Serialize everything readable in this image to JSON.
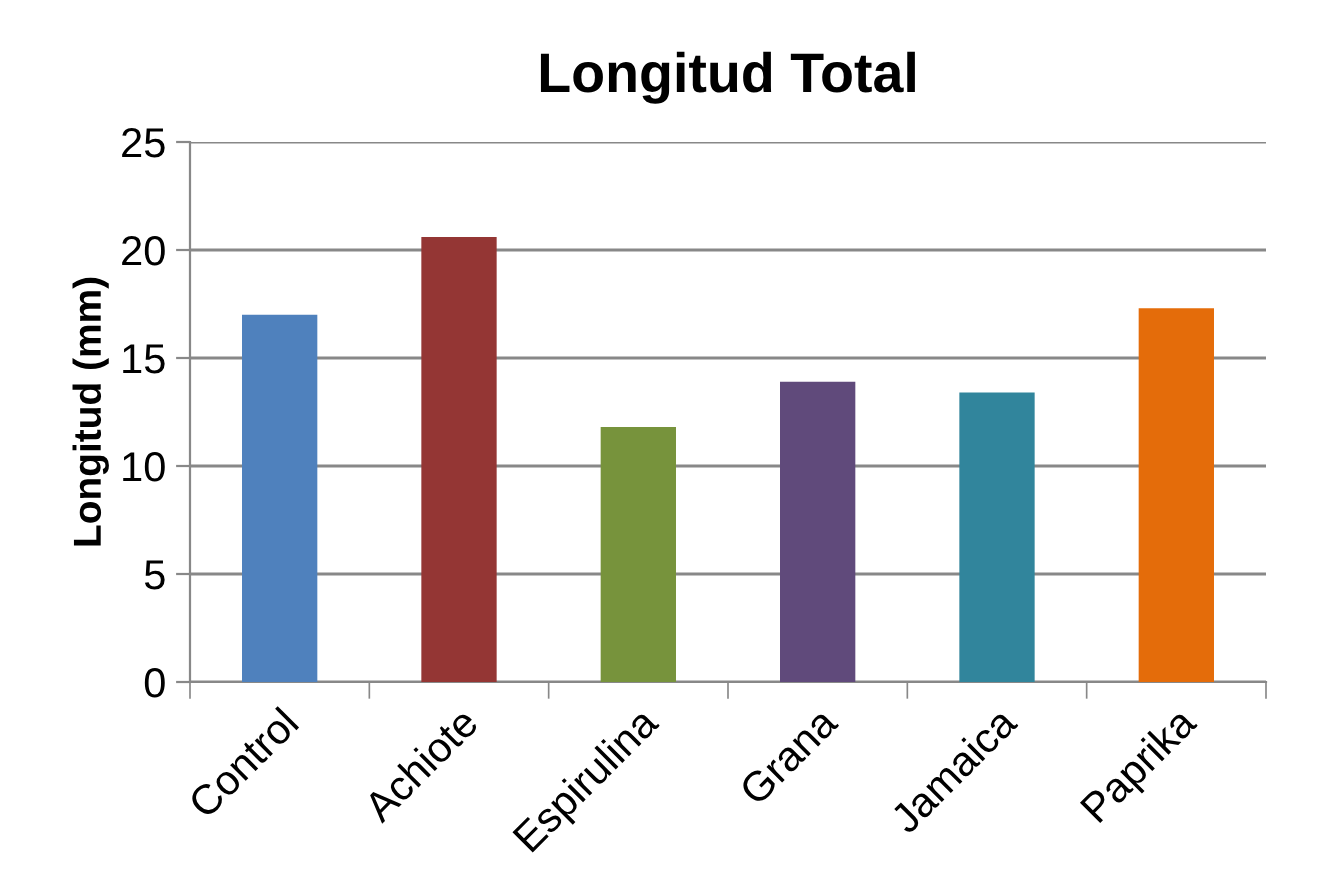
{
  "chart_data": {
    "type": "bar",
    "title": "Longitud Total",
    "ylabel": "Longitud (mm)",
    "categories": [
      "Control",
      "Achiote",
      "Espirulina",
      "Grana",
      "Jamaica",
      "Paprika"
    ],
    "values": [
      17.0,
      20.6,
      11.8,
      13.9,
      13.4,
      17.3
    ],
    "colors": [
      "#4f81bd",
      "#943634",
      "#77933c",
      "#604a7b",
      "#31859c",
      "#e46c0a"
    ],
    "ylim": [
      0,
      25
    ],
    "yticks": [
      0,
      5,
      10,
      15,
      20,
      25
    ],
    "grid": "y",
    "legend": false
  }
}
